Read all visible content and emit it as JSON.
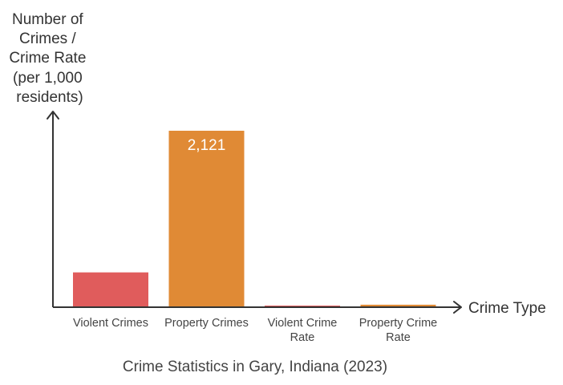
{
  "chart_data": {
    "type": "bar",
    "title": "Crime Statistics in Gary, Indiana (2023)",
    "xlabel": "Crime Type",
    "ylabel": "Number of Crimes / Crime Rate (per 1,000 residents)",
    "ylabel_lines": [
      "Number of",
      "Crimes /",
      "Crime Rate",
      "(per 1,000",
      "residents)"
    ],
    "categories": [
      "Violent Crimes",
      "Property Crimes",
      "Violent Crime Rate",
      "Property Crime Rate"
    ],
    "category_lines": [
      [
        "Violent Crimes"
      ],
      [
        "Property Crimes"
      ],
      [
        "Violent Crime",
        "Rate"
      ],
      [
        "Property Crime",
        "Rate"
      ]
    ],
    "values": [
      418,
      2121,
      6,
      30
    ],
    "data_labels": [
      "",
      "2,121",
      "",
      ""
    ],
    "colors": [
      "#e05c5c",
      "#e08a35",
      "#e05c5c",
      "#e08a35"
    ],
    "ylim": [
      0,
      2121
    ],
    "grid": false,
    "legend": "none"
  }
}
